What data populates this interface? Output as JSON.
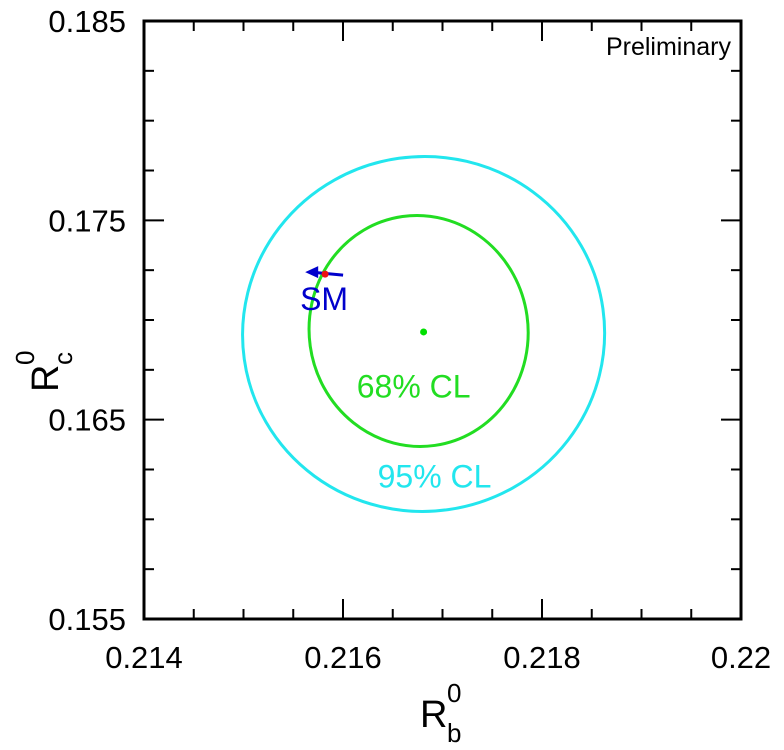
{
  "chart_data": {
    "type": "scatter",
    "annotation": "Preliminary",
    "xlabel": {
      "main": "R",
      "sub": "b",
      "sup": "0"
    },
    "ylabel": {
      "main": "R",
      "sub": "c",
      "sup": "0"
    },
    "xlim": [
      0.214,
      0.22
    ],
    "ylim": [
      0.155,
      0.185
    ],
    "x_ticks": [
      {
        "value": 0.214,
        "label": "0.214"
      },
      {
        "value": 0.216,
        "label": "0.216"
      },
      {
        "value": 0.218,
        "label": "0.218"
      },
      {
        "value": 0.22,
        "label": "0.22"
      }
    ],
    "y_ticks": [
      {
        "value": 0.155,
        "label": "0.155"
      },
      {
        "value": 0.165,
        "label": "0.165"
      },
      {
        "value": 0.175,
        "label": "0.175"
      },
      {
        "value": 0.185,
        "label": "0.185"
      }
    ],
    "x_minor_step": 0.0005,
    "y_minor_step": 0.0025,
    "measurement": {
      "x": 0.21681,
      "y": 0.1694,
      "color": "#00e000"
    },
    "contours": [
      {
        "label": "68% CL",
        "color": "#22dd22",
        "center": [
          0.21676,
          0.16945
        ],
        "semi_x": 0.0011,
        "semi_y": 0.0058,
        "label_at": [
          0.21671,
          0.1661
        ]
      },
      {
        "label": "95% CL",
        "color": "#22e6ee",
        "center": [
          0.21681,
          0.1693
        ],
        "semi_x": 0.00182,
        "semi_y": 0.0089,
        "label_at": [
          0.21692,
          0.1616
        ]
      }
    ],
    "sm": {
      "label": "SM",
      "point": {
        "x": 0.21582,
        "y": 0.1723
      },
      "arrow_to": {
        "x": 0.21562,
        "y": 0.1724
      },
      "point_color": "#ee1111",
      "arrow_color": "#0000cc",
      "label_at": [
        0.21583,
        0.1706
      ]
    }
  }
}
